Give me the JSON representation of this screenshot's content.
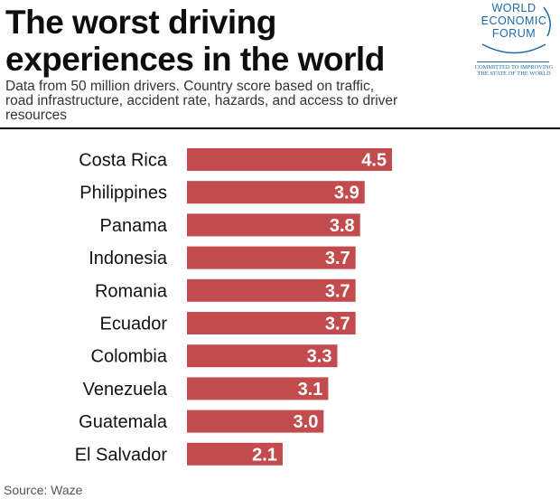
{
  "title": "The worst driving experiences in the world",
  "subtitle": "Data from 50 million drivers. Country score based on traffic, road infrastructure, accident rate, hazards, and access to driver resources",
  "logo": {
    "lines": [
      "WORLD",
      "ECONOMIC",
      "FORUM"
    ],
    "tagline": "COMMITTED TO IMPROVING THE STATE OF THE WORLD",
    "color": "#1a6aa8"
  },
  "source": "Source: Waze",
  "chart_data": {
    "type": "bar",
    "orientation": "horizontal",
    "categories": [
      "Costa Rica",
      "Philippines",
      "Panama",
      "Indonesia",
      "Romania",
      "Ecuador",
      "Colombia",
      "Venezuela",
      "Guatemala",
      "El Salvador"
    ],
    "values": [
      4.5,
      3.9,
      3.8,
      3.7,
      3.7,
      3.7,
      3.3,
      3.1,
      3.0,
      2.1
    ],
    "value_labels": [
      "4.5",
      "3.9",
      "3.8",
      "3.7",
      "3.7",
      "3.7",
      "3.3",
      "3.1",
      "3.0",
      "2.1"
    ],
    "xlim": [
      0,
      4.5
    ],
    "grid": false,
    "bar_color": "#c24b4d",
    "label_color": "#ffffff"
  }
}
